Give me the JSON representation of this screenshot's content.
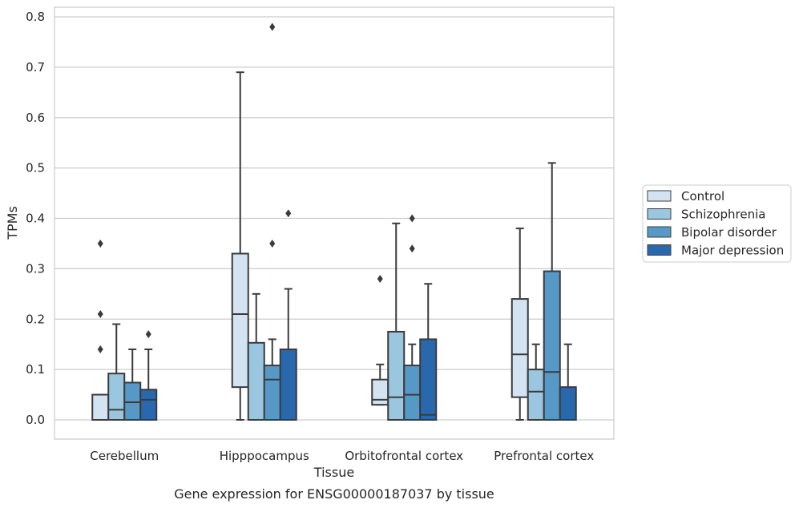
{
  "chart_data": {
    "type": "box",
    "xlabel": "Tissue",
    "ylabel": "TPMs",
    "caption": "Gene expression for ENSG00000187037 by tissue",
    "ylim": [
      -0.04,
      0.82
    ],
    "yticks": [
      "0.0",
      "0.1",
      "0.2",
      "0.3",
      "0.4",
      "0.5",
      "0.6",
      "0.7",
      "0.8"
    ],
    "categories": [
      "Cerebellum",
      "Hipppocampus",
      "Orbitofrontal cortex",
      "Prefrontal cortex"
    ],
    "grid": true,
    "legend_position": "right",
    "series": [
      {
        "name": "Control",
        "color": "#d4e3f2",
        "boxes": [
          {
            "whislo": 0.0,
            "q1": 0.0,
            "med": 0.0,
            "q3": 0.05,
            "whishi": 0.05,
            "fliers": [
              0.14,
              0.21,
              0.35
            ]
          },
          {
            "whislo": 0.0,
            "q1": 0.065,
            "med": 0.21,
            "q3": 0.33,
            "whishi": 0.69,
            "fliers": []
          },
          {
            "whislo": 0.03,
            "q1": 0.03,
            "med": 0.04,
            "q3": 0.08,
            "whishi": 0.11,
            "fliers": [
              0.28
            ]
          },
          {
            "whislo": 0.0,
            "q1": 0.045,
            "med": 0.13,
            "q3": 0.24,
            "whishi": 0.38,
            "fliers": []
          }
        ]
      },
      {
        "name": "Schizophrenia",
        "color": "#9ac6df",
        "boxes": [
          {
            "whislo": 0.0,
            "q1": 0.0,
            "med": 0.02,
            "q3": 0.092,
            "whishi": 0.19,
            "fliers": []
          },
          {
            "whislo": 0.0,
            "q1": 0.0,
            "med": 0.0,
            "q3": 0.153,
            "whishi": 0.25,
            "fliers": []
          },
          {
            "whislo": 0.0,
            "q1": 0.0,
            "med": 0.045,
            "q3": 0.175,
            "whishi": 0.39,
            "fliers": []
          },
          {
            "whislo": 0.0,
            "q1": 0.0,
            "med": 0.056,
            "q3": 0.1,
            "whishi": 0.15,
            "fliers": []
          }
        ]
      },
      {
        "name": "Bipolar disorder",
        "color": "#5799c6",
        "boxes": [
          {
            "whislo": 0.0,
            "q1": 0.0,
            "med": 0.035,
            "q3": 0.074,
            "whishi": 0.14,
            "fliers": []
          },
          {
            "whislo": 0.0,
            "q1": 0.0,
            "med": 0.08,
            "q3": 0.108,
            "whishi": 0.16,
            "fliers": [
              0.35,
              0.78
            ]
          },
          {
            "whislo": 0.0,
            "q1": 0.0,
            "med": 0.05,
            "q3": 0.108,
            "whishi": 0.15,
            "fliers": [
              0.34,
              0.4
            ]
          },
          {
            "whislo": 0.0,
            "q1": 0.0,
            "med": 0.095,
            "q3": 0.295,
            "whishi": 0.51,
            "fliers": []
          }
        ]
      },
      {
        "name": "Major depression",
        "color": "#2a68ae",
        "boxes": [
          {
            "whislo": 0.0,
            "q1": 0.0,
            "med": 0.04,
            "q3": 0.06,
            "whishi": 0.14,
            "fliers": [
              0.17
            ]
          },
          {
            "whislo": 0.0,
            "q1": 0.0,
            "med": 0.0,
            "q3": 0.14,
            "whishi": 0.26,
            "fliers": [
              0.41
            ]
          },
          {
            "whislo": 0.0,
            "q1": 0.0,
            "med": 0.01,
            "q3": 0.16,
            "whishi": 0.27,
            "fliers": []
          },
          {
            "whislo": 0.0,
            "q1": 0.0,
            "med": 0.0,
            "q3": 0.065,
            "whishi": 0.15,
            "fliers": []
          }
        ]
      }
    ]
  }
}
